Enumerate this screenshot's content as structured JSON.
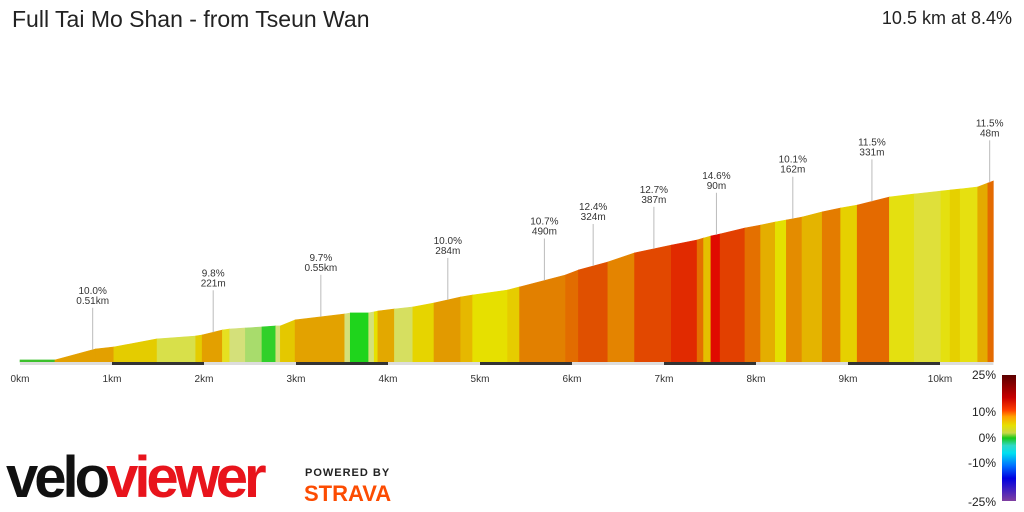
{
  "header": {
    "title": "Full Tai Mo Shan - from Tseun Wan",
    "summary": "10.5 km at 8.4%"
  },
  "chart_data": {
    "type": "area",
    "xlabel": "",
    "ylabel": "",
    "xlim": [
      0,
      10.6
    ],
    "x_ticks": [
      "0km",
      "1km",
      "2km",
      "3km",
      "4km",
      "5km",
      "6km",
      "7km",
      "8km",
      "9km",
      "10km"
    ],
    "profile_km": [
      0,
      0.38,
      0.82,
      1.02,
      1.49,
      1.91,
      1.98,
      2.2,
      2.28,
      2.45,
      2.63,
      2.78,
      2.83,
      2.99,
      3.53,
      3.59,
      3.79,
      3.85,
      3.89,
      4.07,
      4.27,
      4.5,
      4.79,
      4.92,
      5.3,
      5.43,
      5.93,
      6.07,
      6.39,
      6.68,
      7.08,
      7.36,
      7.43,
      7.51,
      7.61,
      7.88,
      8.05,
      8.21,
      8.33,
      8.5,
      8.72,
      8.92,
      9.1,
      9.45,
      9.72,
      10.01,
      10.11,
      10.22,
      10.41,
      10.52,
      10.58
    ],
    "profile_elev_m": [
      10,
      10,
      63,
      73,
      112,
      126,
      131,
      155,
      160,
      165,
      170,
      175,
      175,
      204,
      233,
      238,
      238,
      243,
      247,
      257,
      267,
      286,
      315,
      325,
      349,
      364,
      422,
      446,
      485,
      529,
      567,
      592,
      601,
      611,
      621,
      650,
      664,
      679,
      689,
      703,
      728,
      747,
      761,
      800,
      815,
      829,
      834,
      839,
      849,
      868,
      878
    ],
    "segment_colors": [
      "#3cc02c",
      "#e3a000",
      "#e3a000",
      "#e4cc00",
      "#d8e04a",
      "#e4cc00",
      "#e3a000",
      "#e6e020",
      "#d4e07a",
      "#a8dc6c",
      "#30d02a",
      "#d4e07a",
      "#e4c800",
      "#e3a200",
      "#d4e07a",
      "#1fd41c",
      "#d4e07a",
      "#e6e000",
      "#e3a800",
      "#d6df60",
      "#e6d400",
      "#e29a00",
      "#e6b800",
      "#e6e000",
      "#e6cc00",
      "#e28000",
      "#e26c00",
      "#e05000",
      "#e48400",
      "#e24800",
      "#e12a00",
      "#e47000",
      "#e4c000",
      "#e00a00",
      "#e24000",
      "#e47000",
      "#e4ae00",
      "#e4e000",
      "#e48c00",
      "#e4b400",
      "#e47c00",
      "#e6d000",
      "#e46a00",
      "#e4e010",
      "#dfe03a",
      "#e4e010",
      "#e6d000",
      "#e6e010",
      "#e4aa00",
      "#e46a00"
    ],
    "annotations": [
      {
        "km": 0.79,
        "grade": "10.0%",
        "length": "0.51km"
      },
      {
        "km": 2.1,
        "grade": "9.8%",
        "length": "221m"
      },
      {
        "km": 3.27,
        "grade": "9.7%",
        "length": "0.55km"
      },
      {
        "km": 4.65,
        "grade": "10.0%",
        "length": "284m"
      },
      {
        "km": 5.7,
        "grade": "10.7%",
        "length": "490m"
      },
      {
        "km": 6.23,
        "grade": "12.4%",
        "length": "324m"
      },
      {
        "km": 6.89,
        "grade": "12.7%",
        "length": "387m"
      },
      {
        "km": 7.57,
        "grade": "14.6%",
        "length": "90m"
      },
      {
        "km": 8.4,
        "grade": "10.1%",
        "length": "162m"
      },
      {
        "km": 9.26,
        "grade": "11.5%",
        "length": "331m"
      },
      {
        "km": 10.54,
        "grade": "11.5%",
        "length": "48m"
      }
    ],
    "gradient_legend": {
      "labels": [
        "25%",
        "10%",
        "0%",
        "-10%",
        "-25%"
      ]
    }
  },
  "branding": {
    "logo_velo": "velo",
    "logo_viewer": "viewer",
    "powered_by": "POWERED BY",
    "strava": "STRAVA"
  }
}
